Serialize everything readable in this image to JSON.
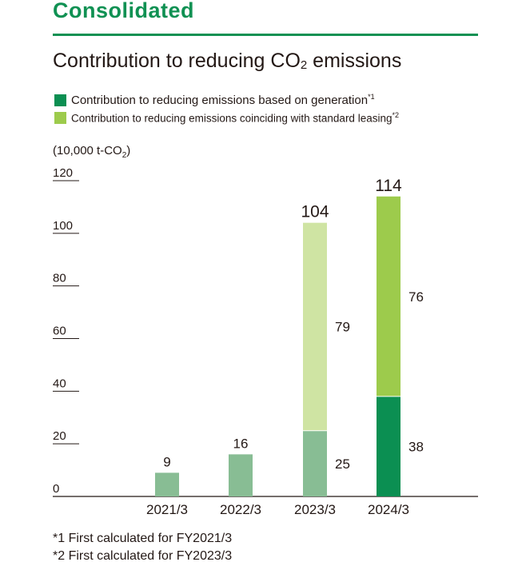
{
  "header": {
    "section_title": "Consolidated",
    "chart_title_main": "Contribution to reducing CO",
    "chart_title_sub": "2",
    "chart_title_end": " emissions"
  },
  "legend": [
    {
      "label": "Contribution to reducing emissions based on generation",
      "note": "*1",
      "color": "#0b8f52"
    },
    {
      "label": "Contribution to reducing emissions coinciding with standard leasing",
      "note": "*2",
      "color": "#9dcb4c"
    }
  ],
  "unit": {
    "main": "(10,000 t-CO",
    "sub": "2",
    "end": ")"
  },
  "footnotes": [
    "*1 First calculated for FY2021/3",
    "*2 First calculated for FY2023/3"
  ],
  "chart_data": {
    "type": "bar",
    "stacked": true,
    "categories": [
      "2021/3",
      "2022/3",
      "2023/3",
      "2024/3"
    ],
    "series": [
      {
        "name": "Contribution to reducing emissions based on generation",
        "values": [
          9,
          16,
          25,
          38
        ]
      },
      {
        "name": "Contribution to reducing emissions coinciding with standard leasing",
        "values": [
          null,
          null,
          79,
          76
        ]
      }
    ],
    "totals": [
      "9",
      "16",
      "104",
      "114"
    ],
    "yticks": [
      0,
      20,
      40,
      60,
      80,
      100,
      120
    ],
    "ylim": [
      0,
      120
    ],
    "ylabel": "(10,000 t-CO2)",
    "colors": {
      "generation": [
        "#88bd94",
        "#88bd94",
        "#88bd94",
        "#0b8f52"
      ],
      "leasing": [
        "#cfe4a3",
        "#cfe4a3",
        "#cfe4a3",
        "#9dcb4c"
      ],
      "axis": "#231815"
    }
  }
}
